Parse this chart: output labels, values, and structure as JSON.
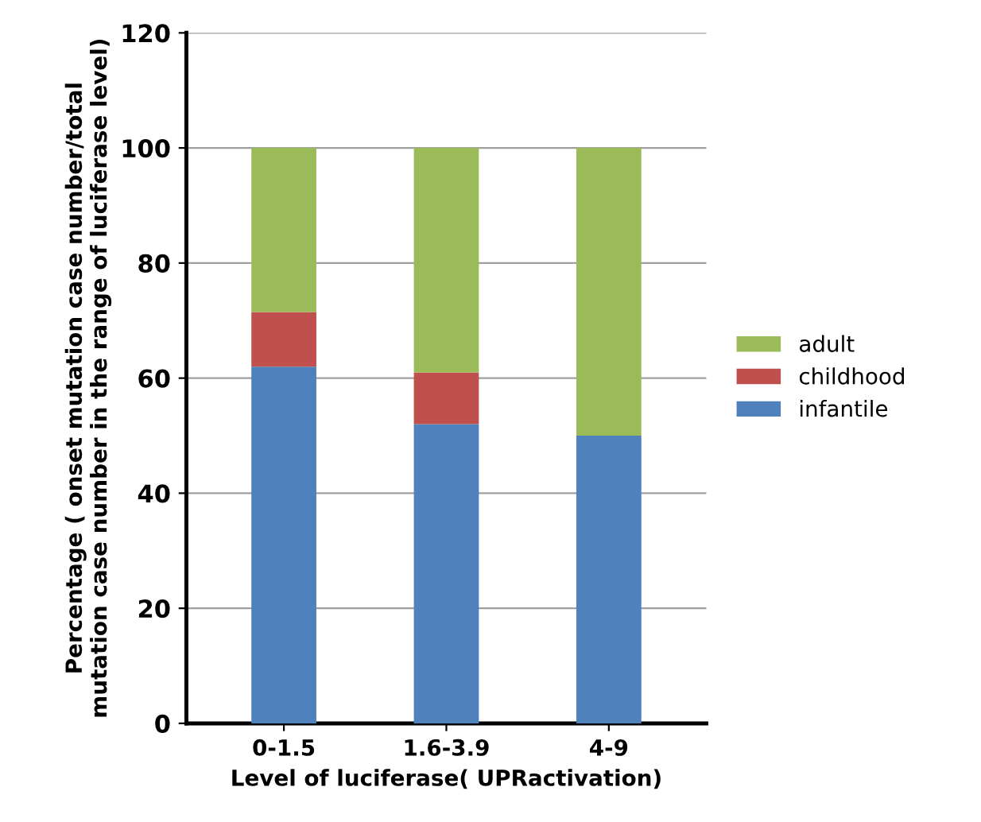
{
  "chart_data": {
    "type": "bar",
    "stacked": true,
    "xlabel": "Level of luciferase( UPRactivation)",
    "ylabel": "Percentage ( onset mutation case number/total\nmutation case number in the range of luciferase level)",
    "categories": [
      "0-1.5",
      "1.6-3.9",
      "4-9"
    ],
    "series": [
      {
        "name": "infantile",
        "color": "#4f81bd",
        "values": [
          62,
          52,
          50
        ]
      },
      {
        "name": "childhood",
        "color": "#c0504d",
        "values": [
          9.5,
          9,
          0
        ]
      },
      {
        "name": "adult",
        "color": "#9bbb59",
        "values": [
          28.5,
          39,
          50
        ]
      }
    ],
    "ylim": [
      0,
      120
    ],
    "yticks": [
      0,
      20,
      40,
      60,
      80,
      100,
      120
    ],
    "grid": "y",
    "legend": "right"
  }
}
